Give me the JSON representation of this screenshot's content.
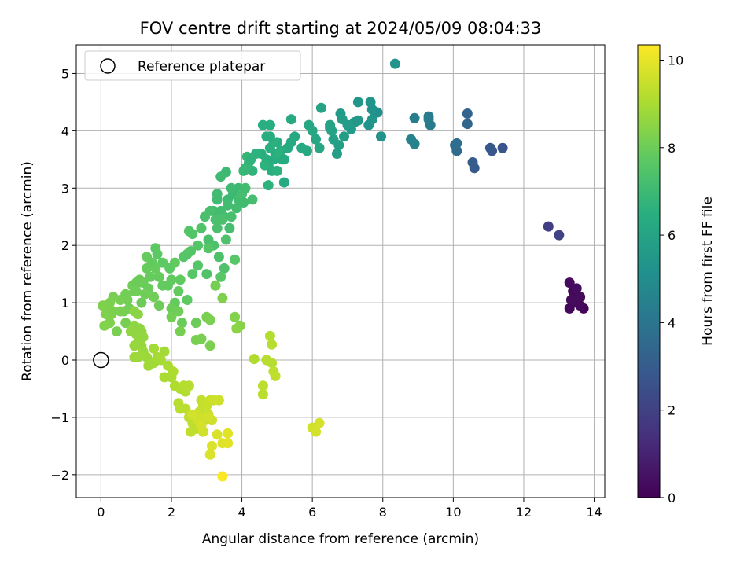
{
  "chart_data": {
    "type": "scatter",
    "title": "FOV centre drift starting at 2024/05/09 08:04:33",
    "xlabel": "Angular distance from reference (arcmin)",
    "ylabel": "Rotation from reference (arcmin)",
    "xlim": [
      -0.7,
      14.3
    ],
    "ylim": [
      -2.4,
      5.5
    ],
    "x_ticks": [
      0,
      2,
      4,
      6,
      8,
      10,
      12,
      14
    ],
    "y_ticks": [
      -2,
      -1,
      0,
      1,
      2,
      3,
      4,
      5
    ],
    "grid": true,
    "legend": {
      "position": "top-left",
      "entries": [
        "Reference platepar"
      ]
    },
    "reference_point": {
      "x": 0.0,
      "y": 0.0
    },
    "colorbar": {
      "label": "Hours from first FF file",
      "min": 0,
      "max": 10.35,
      "ticks": [
        0,
        2,
        4,
        6,
        8,
        10
      ],
      "colormap": "viridis"
    },
    "points": [
      [
        13.6,
        1.1,
        0.1
      ],
      [
        13.7,
        0.9,
        0.1
      ],
      [
        13.3,
        0.9,
        0.15
      ],
      [
        13.4,
        1.2,
        0.2
      ],
      [
        13.5,
        1.0,
        0.2
      ],
      [
        13.3,
        1.35,
        0.3
      ],
      [
        13.6,
        0.95,
        0.25
      ],
      [
        13.5,
        1.25,
        0.35
      ],
      [
        13.35,
        1.05,
        0.3
      ],
      [
        13.6,
        1.1,
        0.3
      ],
      [
        12.7,
        2.33,
        1.9
      ],
      [
        13.0,
        2.18,
        2.05
      ],
      [
        11.4,
        3.7,
        2.7
      ],
      [
        11.1,
        3.65,
        2.8
      ],
      [
        11.05,
        3.7,
        2.85
      ],
      [
        10.6,
        3.35,
        2.9
      ],
      [
        10.55,
        3.45,
        3.0
      ],
      [
        10.4,
        4.3,
        3.3
      ],
      [
        10.4,
        4.12,
        3.4
      ],
      [
        10.1,
        3.65,
        3.6
      ],
      [
        10.05,
        3.75,
        3.65
      ],
      [
        10.1,
        3.78,
        3.7
      ],
      [
        9.35,
        4.1,
        4.2
      ],
      [
        9.3,
        4.2,
        4.25
      ],
      [
        9.3,
        4.25,
        4.3
      ],
      [
        8.9,
        4.22,
        4.4
      ],
      [
        8.8,
        3.85,
        4.55
      ],
      [
        8.9,
        3.77,
        4.6
      ],
      [
        8.35,
        5.17,
        5.3
      ],
      [
        7.95,
        3.9,
        5.2
      ],
      [
        7.85,
        4.32,
        5.1
      ],
      [
        7.7,
        4.37,
        5.2
      ],
      [
        7.6,
        4.1,
        5.3
      ],
      [
        7.7,
        4.2,
        5.4
      ],
      [
        7.65,
        4.5,
        5.35
      ],
      [
        7.3,
        4.5,
        5.4
      ],
      [
        7.3,
        4.18,
        5.5
      ],
      [
        7.2,
        4.15,
        5.5
      ],
      [
        7.1,
        4.03,
        5.6
      ],
      [
        7.0,
        4.1,
        5.6
      ],
      [
        6.9,
        3.9,
        5.7
      ],
      [
        6.8,
        4.3,
        5.6
      ],
      [
        6.85,
        4.2,
        5.65
      ],
      [
        6.75,
        3.75,
        5.8
      ],
      [
        6.7,
        3.6,
        5.8
      ],
      [
        6.6,
        3.85,
        5.9
      ],
      [
        6.5,
        4.05,
        5.9
      ],
      [
        6.55,
        4.0,
        6.0
      ],
      [
        6.5,
        4.1,
        6.0
      ],
      [
        6.25,
        4.4,
        6.0
      ],
      [
        6.2,
        3.7,
        6.1
      ],
      [
        6.1,
        3.85,
        6.1
      ],
      [
        6.0,
        4.0,
        6.2
      ],
      [
        5.9,
        4.1,
        6.1
      ],
      [
        5.85,
        3.65,
        6.2
      ],
      [
        5.7,
        3.7,
        6.25
      ],
      [
        5.5,
        3.9,
        6.2
      ],
      [
        5.4,
        3.8,
        6.25
      ],
      [
        5.3,
        3.7,
        6.3
      ],
      [
        5.2,
        3.1,
        6.3
      ],
      [
        5.15,
        3.5,
        6.35
      ],
      [
        5.1,
        3.65,
        6.4
      ],
      [
        5.0,
        3.8,
        6.4
      ],
      [
        4.95,
        3.6,
        6.4
      ],
      [
        4.9,
        3.5,
        6.4
      ],
      [
        4.85,
        3.3,
        6.45
      ],
      [
        4.8,
        3.7,
        6.5
      ],
      [
        4.75,
        3.4,
        6.5
      ],
      [
        4.7,
        3.5,
        6.5
      ],
      [
        4.7,
        3.9,
        6.45
      ],
      [
        4.6,
        4.1,
        6.45
      ],
      [
        4.8,
        4.1,
        6.5
      ],
      [
        5.4,
        4.2,
        6.3
      ],
      [
        4.75,
        3.05,
        6.6
      ],
      [
        4.9,
        3.8,
        6.55
      ],
      [
        5.05,
        3.6,
        6.55
      ],
      [
        5.0,
        3.3,
        6.6
      ],
      [
        4.65,
        3.4,
        6.6
      ],
      [
        4.3,
        3.3,
        6.7
      ],
      [
        4.2,
        3.45,
        6.8
      ],
      [
        4.15,
        3.55,
        6.85
      ],
      [
        4.05,
        3.3,
        6.9
      ],
      [
        4.1,
        3.35,
        6.85
      ],
      [
        3.9,
        3.0,
        6.95
      ],
      [
        3.8,
        2.9,
        7.0
      ],
      [
        3.75,
        2.9,
        7.0
      ],
      [
        3.7,
        3.0,
        7.05
      ],
      [
        3.6,
        2.8,
        7.0
      ],
      [
        3.55,
        3.28,
        7.0
      ],
      [
        3.4,
        3.2,
        7.05
      ],
      [
        3.3,
        2.9,
        7.1
      ],
      [
        3.2,
        2.6,
        7.1
      ],
      [
        3.3,
        2.8,
        7.1
      ],
      [
        3.4,
        2.6,
        7.15
      ],
      [
        3.5,
        2.5,
        7.2
      ],
      [
        3.6,
        2.7,
        7.15
      ],
      [
        3.9,
        2.8,
        7.15
      ],
      [
        4.0,
        2.9,
        7.2
      ],
      [
        4.1,
        3.0,
        7.15
      ],
      [
        4.3,
        2.8,
        7.2
      ],
      [
        3.7,
        2.5,
        7.25
      ],
      [
        3.1,
        2.6,
        7.25
      ],
      [
        2.95,
        2.5,
        7.3
      ],
      [
        3.3,
        2.3,
        7.3
      ],
      [
        3.05,
        2.1,
        7.3
      ],
      [
        3.2,
        2.0,
        7.35
      ],
      [
        3.35,
        1.8,
        7.35
      ],
      [
        3.55,
        2.1,
        7.4
      ],
      [
        3.5,
        1.6,
        7.4
      ],
      [
        3.0,
        1.5,
        7.45
      ],
      [
        2.85,
        2.3,
        7.45
      ],
      [
        2.75,
        2.0,
        7.5
      ],
      [
        2.6,
        2.2,
        7.5
      ],
      [
        2.55,
        1.9,
        7.5
      ],
      [
        2.45,
        1.85,
        7.55
      ],
      [
        2.35,
        1.8,
        7.55
      ],
      [
        2.6,
        1.5,
        7.6
      ],
      [
        3.8,
        1.75,
        7.6
      ],
      [
        3.05,
        1.95,
        7.55
      ],
      [
        3.25,
        1.3,
        7.65
      ],
      [
        3.4,
        1.45,
        7.65
      ],
      [
        1.55,
        1.95,
        7.7
      ],
      [
        1.6,
        1.85,
        7.7
      ],
      [
        1.75,
        1.7,
        7.75
      ],
      [
        1.95,
        1.6,
        7.75
      ],
      [
        2.1,
        1.7,
        7.8
      ],
      [
        2.25,
        1.4,
        7.8
      ],
      [
        2.2,
        1.2,
        7.85
      ],
      [
        2.1,
        1.0,
        7.85
      ],
      [
        1.9,
        1.3,
        7.8
      ],
      [
        1.75,
        1.3,
        7.85
      ],
      [
        1.65,
        1.45,
        7.9
      ],
      [
        1.55,
        1.6,
        7.9
      ],
      [
        1.4,
        1.45,
        7.9
      ],
      [
        1.35,
        1.25,
        7.95
      ],
      [
        1.3,
        1.6,
        7.9
      ],
      [
        1.2,
        1.35,
        7.95
      ],
      [
        1.15,
        1.0,
        8.0
      ],
      [
        1.05,
        1.35,
        8.0
      ],
      [
        1.0,
        1.2,
        8.0
      ],
      [
        0.9,
        1.3,
        8.05
      ],
      [
        1.3,
        1.8,
        7.9
      ],
      [
        1.45,
        1.7,
        7.85
      ],
      [
        1.5,
        1.1,
        8.05
      ],
      [
        1.25,
        1.15,
        8.05
      ],
      [
        0.75,
        1.05,
        8.1
      ],
      [
        0.8,
        0.9,
        8.1
      ],
      [
        0.65,
        0.85,
        8.15
      ],
      [
        0.7,
        0.65,
        8.15
      ],
      [
        0.55,
        0.85,
        8.2
      ],
      [
        0.45,
        0.5,
        8.2
      ],
      [
        0.55,
        1.05,
        8.15
      ],
      [
        0.7,
        1.15,
        8.1
      ],
      [
        0.35,
        1.1,
        8.2
      ],
      [
        0.25,
        1.0,
        8.25
      ],
      [
        0.15,
        0.95,
        8.25
      ],
      [
        0.05,
        0.95,
        8.3
      ],
      [
        0.25,
        0.65,
        8.3
      ],
      [
        0.1,
        0.6,
        8.35
      ],
      [
        0.3,
        0.8,
        8.3
      ],
      [
        0.15,
        0.8,
        8.3
      ],
      [
        0.35,
        0.85,
        8.25
      ],
      [
        1.0,
        1.35,
        8.0
      ],
      [
        1.1,
        1.4,
        8.0
      ],
      [
        0.95,
        1.2,
        8.05
      ],
      [
        4.8,
        3.9,
        6.4
      ],
      [
        5.2,
        3.5,
        6.35
      ],
      [
        4.55,
        3.6,
        6.5
      ],
      [
        4.4,
        3.6,
        6.6
      ],
      [
        4.25,
        3.5,
        6.65
      ],
      [
        4.05,
        2.75,
        7.1
      ],
      [
        3.85,
        2.65,
        7.15
      ],
      [
        3.65,
        2.3,
        7.2
      ],
      [
        3.45,
        2.45,
        7.3
      ],
      [
        3.25,
        2.45,
        7.3
      ],
      [
        2.5,
        2.25,
        7.5
      ],
      [
        2.75,
        1.65,
        7.55
      ],
      [
        2.45,
        1.05,
        7.75
      ],
      [
        2.0,
        1.4,
        7.8
      ],
      [
        2.3,
        0.65,
        7.95
      ],
      [
        2.0,
        0.9,
        8.0
      ],
      [
        1.65,
        0.95,
        8.0
      ],
      [
        2.2,
        0.85,
        8.05
      ],
      [
        2.0,
        0.75,
        8.1
      ],
      [
        2.7,
        0.65,
        8.0
      ],
      [
        2.85,
        0.37,
        8.2
      ],
      [
        2.25,
        0.5,
        8.15
      ],
      [
        2.7,
        0.35,
        8.2
      ],
      [
        3.1,
        0.25,
        8.25
      ],
      [
        3.0,
        0.75,
        8.2
      ],
      [
        3.1,
        0.7,
        8.25
      ],
      [
        3.25,
        1.3,
        8.15
      ],
      [
        3.45,
        1.08,
        8.3
      ],
      [
        3.8,
        0.75,
        8.35
      ],
      [
        3.95,
        0.6,
        8.4
      ],
      [
        3.85,
        0.55,
        8.5
      ],
      [
        0.95,
        0.85,
        8.5
      ],
      [
        1.05,
        0.8,
        8.5
      ],
      [
        0.95,
        0.6,
        8.55
      ],
      [
        1.1,
        0.55,
        8.55
      ],
      [
        1.15,
        0.5,
        8.6
      ],
      [
        0.85,
        0.5,
        8.6
      ],
      [
        1.0,
        0.45,
        8.6
      ],
      [
        1.2,
        0.4,
        8.65
      ],
      [
        1.05,
        0.3,
        8.65
      ],
      [
        0.95,
        0.25,
        8.7
      ],
      [
        1.15,
        0.25,
        8.7
      ],
      [
        1.2,
        0.15,
        8.75
      ],
      [
        1.05,
        0.05,
        8.75
      ],
      [
        0.95,
        0.05,
        8.8
      ],
      [
        1.3,
        0.05,
        8.8
      ],
      [
        1.35,
        -0.1,
        8.85
      ],
      [
        1.5,
        -0.05,
        8.85
      ],
      [
        1.6,
        0.05,
        8.9
      ],
      [
        1.5,
        0.2,
        8.9
      ],
      [
        1.8,
        0.15,
        8.9
      ],
      [
        1.7,
        0.0,
        8.95
      ],
      [
        1.9,
        -0.1,
        9.0
      ],
      [
        1.8,
        -0.3,
        9.0
      ],
      [
        2.0,
        -0.3,
        9.0
      ],
      [
        2.05,
        -0.2,
        9.05
      ],
      [
        2.1,
        -0.45,
        9.1
      ],
      [
        2.25,
        -0.5,
        9.1
      ],
      [
        2.35,
        -0.45,
        9.15
      ],
      [
        2.4,
        -0.55,
        9.15
      ],
      [
        2.5,
        -0.45,
        9.2
      ],
      [
        2.2,
        -0.75,
        9.2
      ],
      [
        2.25,
        -0.85,
        9.25
      ],
      [
        2.4,
        -0.85,
        9.25
      ],
      [
        2.5,
        -1.0,
        9.3
      ],
      [
        2.6,
        -1.1,
        9.3
      ],
      [
        2.7,
        -1.2,
        9.3
      ],
      [
        2.55,
        -1.25,
        9.35
      ],
      [
        2.65,
        -1.15,
        9.35
      ],
      [
        2.85,
        -1.1,
        9.35
      ],
      [
        2.8,
        -0.9,
        9.4
      ],
      [
        2.85,
        -0.7,
        9.4
      ],
      [
        2.9,
        -0.8,
        9.45
      ],
      [
        2.95,
        -1.05,
        9.45
      ],
      [
        3.0,
        -0.8,
        9.5
      ],
      [
        3.1,
        -0.7,
        9.5
      ],
      [
        3.2,
        -0.7,
        9.55
      ],
      [
        3.05,
        -0.95,
        9.5
      ],
      [
        3.15,
        -1.05,
        9.55
      ],
      [
        2.75,
        -0.95,
        9.55
      ],
      [
        3.35,
        -0.7,
        9.55
      ],
      [
        2.75,
        -1.05,
        9.6
      ],
      [
        2.9,
        -1.25,
        9.6
      ],
      [
        2.8,
        -1.05,
        9.6
      ],
      [
        2.6,
        -0.95,
        9.65
      ],
      [
        3.05,
        -1.0,
        9.65
      ],
      [
        2.85,
        -1.15,
        9.7
      ],
      [
        3.3,
        -1.3,
        9.75
      ],
      [
        3.15,
        -1.5,
        9.8
      ],
      [
        3.1,
        -1.65,
        9.8
      ],
      [
        3.45,
        -1.45,
        9.85
      ],
      [
        3.6,
        -1.45,
        9.9
      ],
      [
        3.6,
        -1.28,
        9.9
      ],
      [
        3.45,
        -2.03,
        10.3
      ],
      [
        4.35,
        0.02,
        9.1
      ],
      [
        4.7,
        0.0,
        9.2
      ],
      [
        4.85,
        -0.05,
        9.2
      ],
      [
        4.9,
        -0.2,
        9.3
      ],
      [
        4.95,
        -0.28,
        9.35
      ],
      [
        4.6,
        -0.45,
        9.3
      ],
      [
        4.6,
        -0.6,
        9.25
      ],
      [
        4.8,
        0.42,
        9.15
      ],
      [
        4.85,
        0.27,
        9.2
      ],
      [
        6.0,
        -1.18,
        9.6
      ],
      [
        6.1,
        -1.25,
        9.65
      ],
      [
        6.2,
        -1.1,
        9.7
      ]
    ]
  }
}
